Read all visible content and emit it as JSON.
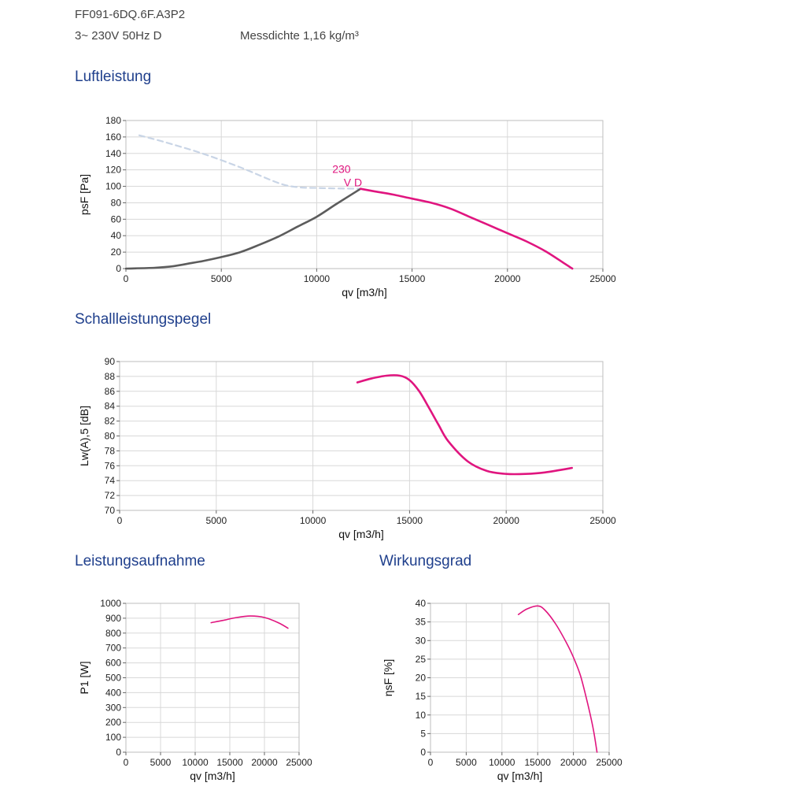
{
  "header": {
    "model": "FF091-6DQ.6F.A3P2",
    "supply": "3~ 230V 50Hz D",
    "density": "Messdichte 1,16 kg/m³"
  },
  "sections": {
    "air": "Luftleistung",
    "sound": "Schallleistungspegel",
    "power": "Leistungsaufnahme",
    "efficiency": "Wirkungsgrad"
  },
  "colors": {
    "curve": "#e0157f",
    "system": "#5c5c5c",
    "dashed": "#c9d5e6"
  },
  "chart_data": [
    {
      "id": "air",
      "type": "line",
      "xlabel": "qv [m3/h]",
      "ylabel": "psF [Pa]",
      "xlim": [
        0,
        25000
      ],
      "ylim": [
        0,
        180
      ],
      "xticks": [
        0,
        5000,
        10000,
        15000,
        20000,
        25000
      ],
      "yticks": [
        0,
        20,
        40,
        60,
        80,
        100,
        120,
        140,
        160,
        180
      ],
      "grid": true,
      "annotation": [
        "230",
        "V D"
      ],
      "series": [
        {
          "style": "dashed",
          "x": [
            700,
            2000,
            4000,
            6000,
            8000,
            9000,
            10000,
            11000,
            12300
          ],
          "y": [
            162,
            154,
            140,
            123,
            104,
            99,
            98,
            97.5,
            97
          ]
        },
        {
          "style": "system",
          "x": [
            0,
            1500,
            2500,
            3500,
            4000,
            5000,
            6000,
            7000,
            8000,
            9000,
            10000,
            11000,
            12300
          ],
          "y": [
            0,
            1,
            3,
            7,
            9,
            14,
            20,
            29,
            39,
            51,
            63,
            78,
            97
          ]
        },
        {
          "style": "curve",
          "x": [
            12300,
            13000,
            14000,
            15000,
            16000,
            17000,
            18000,
            19000,
            20000,
            21000,
            22000,
            23000,
            23400
          ],
          "y": [
            97,
            94,
            90,
            85,
            80,
            73,
            63,
            53,
            43,
            33,
            21,
            6,
            0
          ]
        }
      ]
    },
    {
      "id": "sound",
      "type": "line",
      "xlabel": "qv [m3/h]",
      "ylabel": "Lw(A),5 [dB]",
      "xlim": [
        0,
        25000
      ],
      "ylim": [
        70,
        90
      ],
      "xticks": [
        0,
        5000,
        10000,
        15000,
        20000,
        25000
      ],
      "yticks": [
        70,
        72,
        74,
        76,
        78,
        80,
        82,
        84,
        86,
        88,
        90
      ],
      "grid": true,
      "series": [
        {
          "style": "curve",
          "x": [
            12300,
            13000,
            13800,
            14500,
            15000,
            15500,
            16000,
            16500,
            17000,
            18000,
            19000,
            20000,
            21000,
            22000,
            23400
          ],
          "y": [
            87.2,
            87.7,
            88.1,
            88.1,
            87.5,
            86.0,
            83.8,
            81.5,
            79.3,
            76.6,
            75.3,
            74.9,
            74.9,
            75.1,
            75.7
          ]
        }
      ]
    },
    {
      "id": "power",
      "type": "line",
      "xlabel": "qv [m3/h]",
      "ylabel": "P1 [W]",
      "xlim": [
        0,
        25000
      ],
      "ylim": [
        0,
        1000
      ],
      "xticks": [
        0,
        5000,
        10000,
        15000,
        20000,
        25000
      ],
      "yticks": [
        0,
        100,
        200,
        300,
        400,
        500,
        600,
        700,
        800,
        900,
        1000
      ],
      "grid": true,
      "series": [
        {
          "style": "curve",
          "x": [
            12300,
            14000,
            16000,
            18000,
            20000,
            22000,
            23400
          ],
          "y": [
            870,
            885,
            905,
            915,
            905,
            870,
            833
          ]
        }
      ]
    },
    {
      "id": "efficiency",
      "type": "line",
      "xlabel": "qv [m3/h]",
      "ylabel": "ηsF [%]",
      "xlim": [
        0,
        25000
      ],
      "ylim": [
        0,
        40
      ],
      "xticks": [
        0,
        5000,
        10000,
        15000,
        20000,
        25000
      ],
      "yticks": [
        0,
        5,
        10,
        15,
        20,
        25,
        30,
        35,
        40
      ],
      "grid": true,
      "series": [
        {
          "style": "curve",
          "x": [
            12300,
            13500,
            15000,
            16000,
            17500,
            19000,
            20000,
            21000,
            22000,
            22800,
            23300
          ],
          "y": [
            37,
            38.5,
            39.3,
            38.2,
            34.5,
            29.5,
            25.5,
            20.5,
            13,
            6,
            0
          ]
        }
      ]
    }
  ]
}
